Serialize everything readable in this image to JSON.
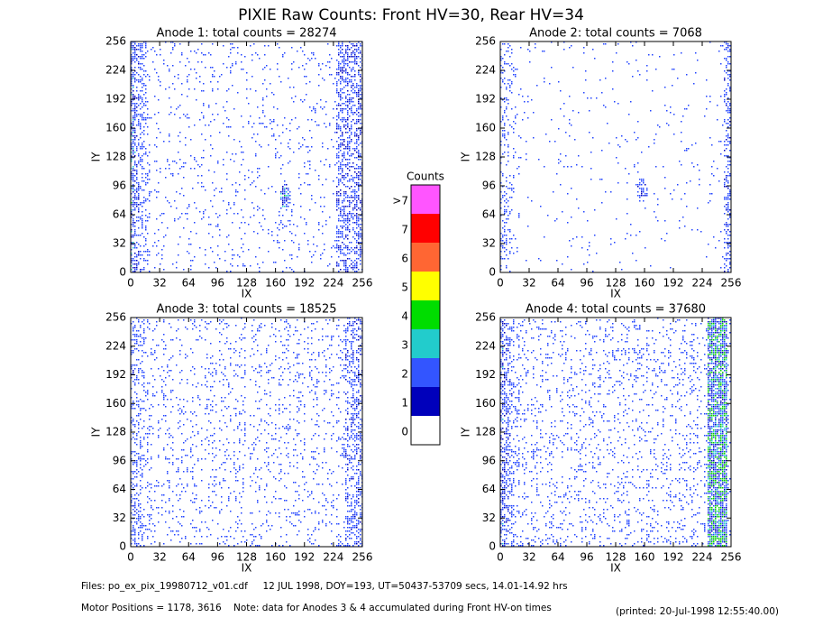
{
  "title": "PIXIE Raw Counts:  Front HV=30, Rear HV=34",
  "chart_data": [
    {
      "type": "heatmap",
      "title": "Anode 1: total counts = 28274",
      "xlabel": "IX",
      "ylabel": "IY",
      "xlim": [
        0,
        256
      ],
      "ylim": [
        0,
        256
      ],
      "xticks": [
        0,
        32,
        64,
        96,
        128,
        160,
        192,
        224,
        256
      ],
      "yticks": [
        0,
        32,
        64,
        96,
        128,
        160,
        192,
        224,
        256
      ]
    },
    {
      "type": "heatmap",
      "title": "Anode 2: total counts = 7068",
      "xlabel": "IX",
      "ylabel": "IY",
      "xlim": [
        0,
        256
      ],
      "ylim": [
        0,
        256
      ],
      "xticks": [
        0,
        32,
        64,
        96,
        128,
        160,
        192,
        224,
        256
      ],
      "yticks": [
        0,
        32,
        64,
        96,
        128,
        160,
        192,
        224,
        256
      ]
    },
    {
      "type": "heatmap",
      "title": "Anode 3: total counts = 18525",
      "xlabel": "IX",
      "ylabel": "IY",
      "xlim": [
        0,
        256
      ],
      "ylim": [
        0,
        256
      ],
      "xticks": [
        0,
        32,
        64,
        96,
        128,
        160,
        192,
        224,
        256
      ],
      "yticks": [
        0,
        32,
        64,
        96,
        128,
        160,
        192,
        224,
        256
      ]
    },
    {
      "type": "heatmap",
      "title": "Anode 4: total counts = 37680",
      "xlabel": "IX",
      "ylabel": "IY",
      "xlim": [
        0,
        256
      ],
      "ylim": [
        0,
        256
      ],
      "xticks": [
        0,
        32,
        64,
        96,
        128,
        160,
        192,
        224,
        256
      ],
      "yticks": [
        0,
        32,
        64,
        96,
        128,
        160,
        192,
        224,
        256
      ]
    }
  ],
  "colorbar": {
    "title": "Counts",
    "labels": [
      ">7",
      "7",
      "6",
      "5",
      "4",
      "3",
      "2",
      "1",
      "0"
    ],
    "colors": [
      "#ff55ff",
      "#ff0000",
      "#ff6633",
      "#ffff00",
      "#00dd00",
      "#22cccc",
      "#3355ff",
      "#0000bb",
      "#ffffff"
    ]
  },
  "footer": {
    "files": "Files: po_ex_pix_19980712_v01.cdf     12 JUL 1998, DOY=193, UT=50437-53709 secs, 14.01-14.92 hrs",
    "motor": "Motor Positions = 1178, 3616    Note: data for Anodes 3 & 4 accumulated during Front HV-on times",
    "printed": "(printed: 20-Jul-1998 12:55:40.00)"
  }
}
